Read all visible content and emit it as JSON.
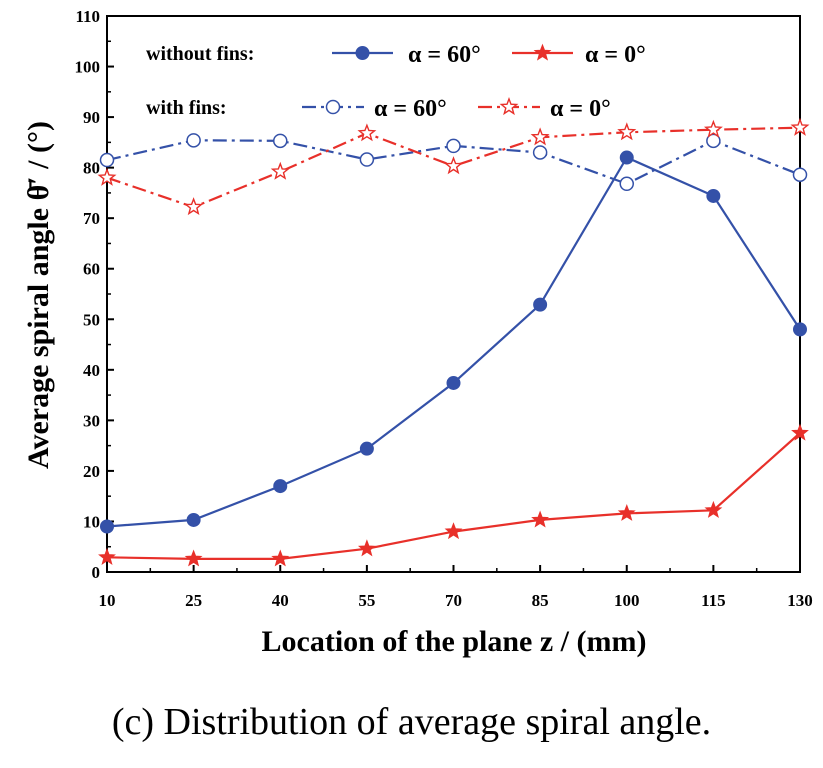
{
  "caption": "(c) Distribution of average spiral angle.",
  "chart_data": {
    "type": "line",
    "xlabel": "Location of the plane z / (mm)",
    "ylabel": "Average spiral angle θ̄′ / (°)",
    "x": [
      10,
      25,
      40,
      55,
      70,
      85,
      100,
      115,
      130
    ],
    "x_ticks": [
      "10",
      "25",
      "40",
      "55",
      "70",
      "85",
      "100",
      "115",
      "130"
    ],
    "y_ticks": [
      "0",
      "10",
      "20",
      "30",
      "40",
      "50",
      "60",
      "70",
      "80",
      "90",
      "100",
      "110"
    ],
    "xlim": [
      10,
      130
    ],
    "ylim": [
      0,
      110
    ],
    "legend": {
      "group_without": "without fins:",
      "group_with": "with fins:",
      "alpha60": "α = 60°",
      "alpha0": "α = 0°",
      "placement": "top-left"
    },
    "series": [
      {
        "name": "without fins α = 60°",
        "color": "#3451a8",
        "marker": "filled-circle",
        "line": "solid",
        "values": [
          9.0,
          10.3,
          17.0,
          24.4,
          37.4,
          52.9,
          82.0,
          74.4,
          48.0
        ]
      },
      {
        "name": "without fins α = 0°",
        "color": "#e8302a",
        "marker": "filled-star",
        "line": "solid",
        "values": [
          2.9,
          2.6,
          2.6,
          4.6,
          8.0,
          10.3,
          11.6,
          12.2,
          27.5
        ]
      },
      {
        "name": "with fins α = 60°",
        "color": "#3451a8",
        "marker": "open-circle",
        "line": "dashdot",
        "values": [
          81.5,
          85.4,
          85.3,
          81.6,
          84.3,
          83.0,
          76.8,
          85.3,
          78.6
        ]
      },
      {
        "name": "with fins α = 0°",
        "color": "#e8302a",
        "marker": "open-star",
        "line": "dashdot",
        "values": [
          78.0,
          72.2,
          79.2,
          86.8,
          80.3,
          86.0,
          87.0,
          87.5,
          87.9
        ]
      }
    ]
  }
}
